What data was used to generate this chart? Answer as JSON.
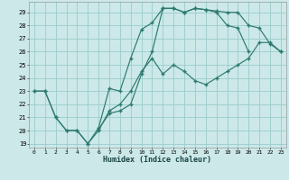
{
  "background_color": "#cce8e8",
  "grid_color": "#99cccc",
  "line_color": "#2d7a6e",
  "xlim": [
    -0.5,
    23.5
  ],
  "ylim": [
    18.7,
    29.8
  ],
  "xticks": [
    0,
    1,
    2,
    3,
    4,
    5,
    6,
    7,
    8,
    9,
    10,
    11,
    12,
    13,
    14,
    15,
    16,
    17,
    18,
    19,
    20,
    21,
    22,
    23
  ],
  "yticks": [
    19,
    20,
    21,
    22,
    23,
    24,
    25,
    26,
    27,
    28,
    29
  ],
  "xlabel": "Humidex (Indice chaleur)",
  "line1_x": [
    0,
    1,
    2,
    3,
    4,
    5,
    6,
    7,
    8,
    9,
    10,
    11,
    12,
    13,
    14,
    15,
    16,
    17,
    18,
    19,
    20,
    21,
    22,
    23
  ],
  "line1_y": [
    23,
    23,
    21,
    20,
    20,
    19,
    20,
    21.5,
    22,
    23,
    24.5,
    25.5,
    24.3,
    25,
    24.5,
    23.8,
    23.5,
    24.0,
    24.5,
    25.0,
    25.5,
    26.7,
    26.7,
    26.0
  ],
  "line2_x": [
    0,
    1,
    2,
    3,
    4,
    5,
    6,
    7,
    8,
    9,
    10,
    11,
    12,
    13,
    14,
    15,
    16,
    17,
    18,
    19,
    20,
    21,
    22,
    23
  ],
  "line2_y": [
    23,
    23,
    21,
    20,
    20,
    19,
    20.2,
    23.2,
    23.0,
    25.5,
    27.7,
    28.2,
    29.3,
    29.3,
    29.0,
    29.3,
    29.2,
    29.1,
    29.0,
    29.0,
    28.0,
    27.8,
    26.6,
    26.0
  ],
  "line3_x": [
    6,
    7,
    8,
    9,
    10,
    11,
    12,
    13,
    14,
    15,
    16,
    17,
    18,
    19,
    20
  ],
  "line3_y": [
    20.1,
    21.3,
    21.5,
    22.0,
    24.3,
    26.0,
    29.3,
    29.3,
    29.0,
    29.3,
    29.2,
    29.0,
    28.0,
    27.8,
    26.0
  ]
}
